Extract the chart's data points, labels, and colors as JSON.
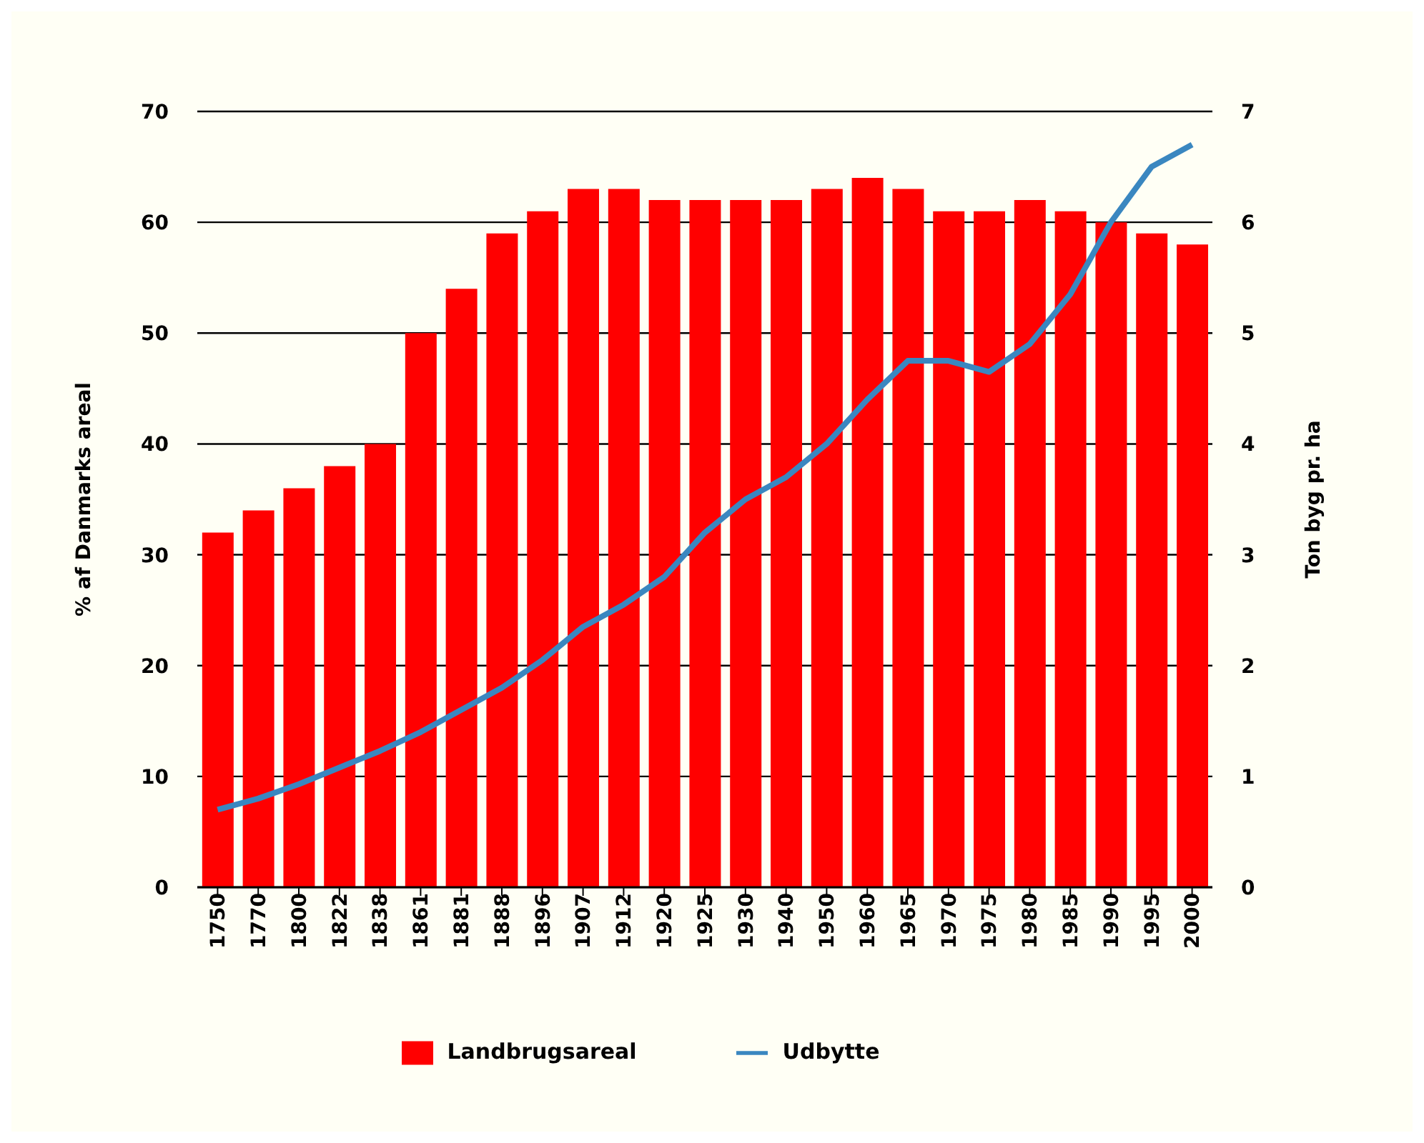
{
  "chart_data": {
    "type": "bar",
    "categories": [
      "1750",
      "1770",
      "1800",
      "1822",
      "1838",
      "1861",
      "1881",
      "1888",
      "1896",
      "1907",
      "1912",
      "1920",
      "1925",
      "1930",
      "1940",
      "1950",
      "1960",
      "1965",
      "1970",
      "1975",
      "1980",
      "1985",
      "1990",
      "1995",
      "2000"
    ],
    "series": [
      {
        "name": "Landbrugsareal",
        "color": "#ff0000",
        "values": [
          32,
          34,
          36,
          38,
          40,
          50,
          54,
          59,
          61,
          63,
          63,
          62,
          62,
          62,
          62,
          63,
          64,
          63,
          61,
          61,
          62,
          61,
          60,
          59,
          58
        ]
      },
      {
        "name": "Udbytte",
        "type": "line",
        "axis": "y2",
        "color": "#3a87c0",
        "values": [
          0.7,
          0.8,
          0.93,
          1.08,
          1.23,
          1.4,
          1.6,
          1.8,
          2.05,
          2.35,
          2.55,
          2.8,
          3.2,
          3.5,
          3.7,
          4.0,
          4.4,
          4.75,
          4.75,
          4.65,
          4.9,
          5.35,
          6.0,
          6.5,
          6.7
        ]
      }
    ],
    "ylabel": "% af Danmarks areal",
    "y2label": "Ton byg pr. ha",
    "ylim": [
      0,
      70
    ],
    "yticks": [
      0,
      10,
      20,
      30,
      40,
      50,
      60,
      70
    ],
    "y2lim": [
      0,
      7
    ],
    "y2ticks": [
      0,
      1,
      2,
      3,
      4,
      5,
      6,
      7
    ],
    "grid": "y",
    "legend": "bottom",
    "marker": "none"
  }
}
